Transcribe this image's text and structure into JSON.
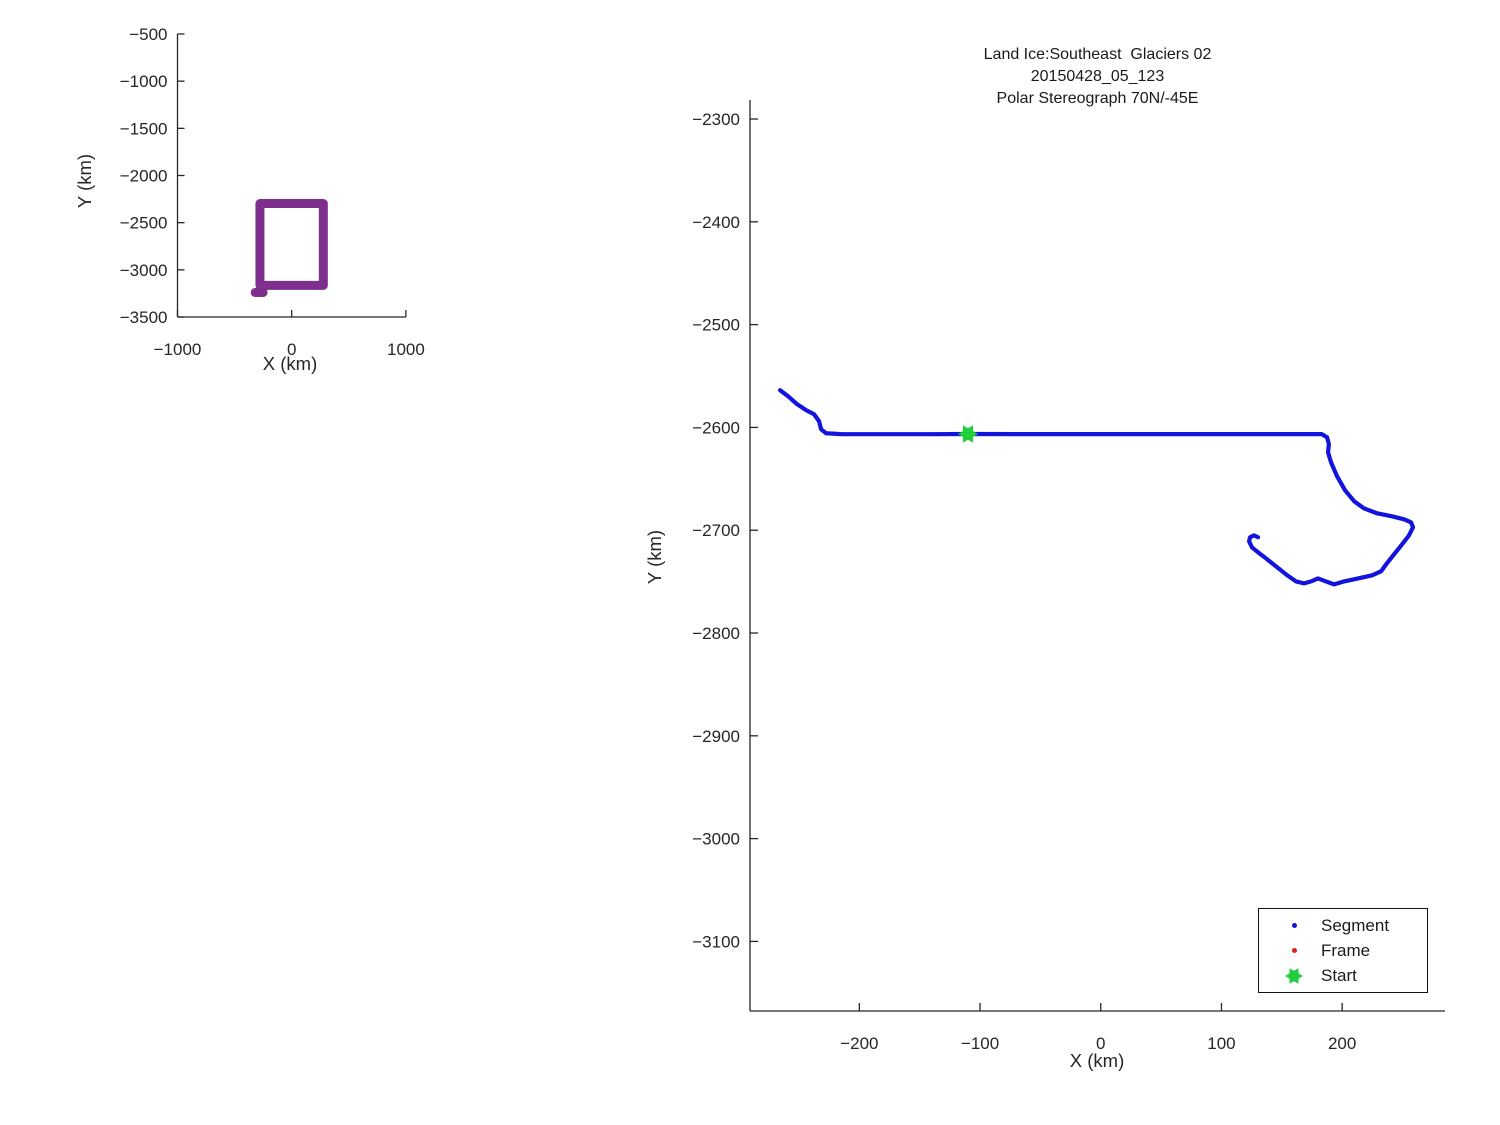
{
  "title": {
    "line1": "Land Ice:Southeast  Glaciers 02",
    "line2": "20150428_05_123",
    "line3": "Polar Stereograph 70N/-45E"
  },
  "colors": {
    "segment_blue": "#1213DC",
    "frame_red": "#DC1F1F",
    "start_green": "#1FD03C",
    "extent_purple": "#7E2F8E",
    "axis_text": "#262626"
  },
  "legend": {
    "position": "lower-right",
    "items": [
      {
        "label": "Segment",
        "marker": "dot",
        "color": "#1213DC"
      },
      {
        "label": "Frame",
        "marker": "dot",
        "color": "#DC1F1F"
      },
      {
        "label": "Start",
        "marker": "hexagram",
        "color": "#1FD03C"
      }
    ]
  },
  "chart_data": [
    {
      "id": "overview",
      "type": "line",
      "title": "",
      "xlabel": "X (km)",
      "ylabel": "Y (km)",
      "xlim": [
        -1000,
        1000
      ],
      "ylim": [
        -3500,
        -500
      ],
      "x_ticks": [
        -1000,
        0,
        1000
      ],
      "y_ticks": [
        -500,
        -1000,
        -1500,
        -2000,
        -2500,
        -3000,
        -3500
      ],
      "grid": false,
      "series": [
        {
          "name": "track-extent-outline",
          "color": "#7E2F8E",
          "width": 9,
          "points": [
            [
              -278,
              -2297
            ],
            [
              277,
              -2297
            ],
            [
              277,
              -3165
            ],
            [
              -278,
              -3165
            ],
            [
              -278,
              -2297
            ]
          ]
        },
        {
          "name": "track-extent-tail",
          "color": "#7E2F8E",
          "width": 9,
          "points": [
            [
              -320,
              -3240
            ],
            [
              -250,
              -3240
            ]
          ]
        }
      ],
      "markers": []
    },
    {
      "id": "detail",
      "type": "line",
      "title": "Land Ice:Southeast  Glaciers 02 | 20150428_05_123 | Polar Stereograph 70N/-45E",
      "xlabel": "X (km)",
      "ylabel": "Y (km)",
      "xlim": [
        -290.6,
        285.2
      ],
      "ylim": [
        -3167.7,
        -2281.5
      ],
      "x_ticks": [
        -200,
        -100,
        0,
        100,
        200
      ],
      "y_ticks": [
        -2300,
        -2400,
        -2500,
        -2600,
        -2700,
        -2800,
        -2900,
        -3000,
        -3100
      ],
      "grid": false,
      "series": [
        {
          "name": "segment-track",
          "color": "#1213DC",
          "width": 4.2,
          "points": [
            [
              -265.7,
              -2563.8
            ],
            [
              -259.0,
              -2569.7
            ],
            [
              -251.5,
              -2577.5
            ],
            [
              -244.0,
              -2583.3
            ],
            [
              -237.5,
              -2587.2
            ],
            [
              -233.4,
              -2594.0
            ],
            [
              -231.7,
              -2601.8
            ],
            [
              -227.6,
              -2605.7
            ],
            [
              -215.0,
              -2606.5
            ],
            [
              -180.0,
              -2606.6
            ],
            [
              -140.0,
              -2606.6
            ],
            [
              -110.0,
              -2606.4
            ],
            [
              -70.0,
              -2606.5
            ],
            [
              -30.0,
              -2606.5
            ],
            [
              10.0,
              -2606.5
            ],
            [
              60.0,
              -2606.5
            ],
            [
              110.0,
              -2606.5
            ],
            [
              155.0,
              -2606.5
            ],
            [
              183.0,
              -2606.5
            ],
            [
              187.5,
              -2609.6
            ],
            [
              189.0,
              -2616.4
            ],
            [
              188.3,
              -2624.2
            ],
            [
              190.8,
              -2634.0
            ],
            [
              195.8,
              -2647.6
            ],
            [
              202.4,
              -2661.2
            ],
            [
              210.0,
              -2671.9
            ],
            [
              218.0,
              -2678.7
            ],
            [
              229.0,
              -2683.6
            ],
            [
              241.3,
              -2686.5
            ],
            [
              251.3,
              -2689.4
            ],
            [
              257.0,
              -2692.3
            ],
            [
              258.7,
              -2697.2
            ],
            [
              255.4,
              -2705.0
            ],
            [
              249.6,
              -2713.8
            ],
            [
              243.0,
              -2723.5
            ],
            [
              236.4,
              -2733.2
            ],
            [
              232.2,
              -2740.0
            ],
            [
              224.8,
              -2743.9
            ],
            [
              213.2,
              -2746.9
            ],
            [
              201.6,
              -2749.8
            ],
            [
              193.3,
              -2752.7
            ],
            [
              186.6,
              -2749.8
            ],
            [
              180.0,
              -2746.9
            ],
            [
              174.2,
              -2749.8
            ],
            [
              168.4,
              -2751.7
            ],
            [
              161.8,
              -2749.8
            ],
            [
              153.5,
              -2743.0
            ],
            [
              145.2,
              -2735.2
            ],
            [
              136.9,
              -2727.4
            ],
            [
              130.3,
              -2721.5
            ],
            [
              125.3,
              -2716.7
            ],
            [
              122.9,
              -2710.8
            ],
            [
              123.7,
              -2706.9
            ],
            [
              127.0,
              -2705.0
            ],
            [
              130.3,
              -2706.9
            ]
          ]
        }
      ],
      "markers": [
        {
          "name": "start",
          "shape": "hexagram",
          "color": "#1FD03C",
          "x": -110.0,
          "y": -2606.4,
          "size": 10
        }
      ]
    }
  ]
}
